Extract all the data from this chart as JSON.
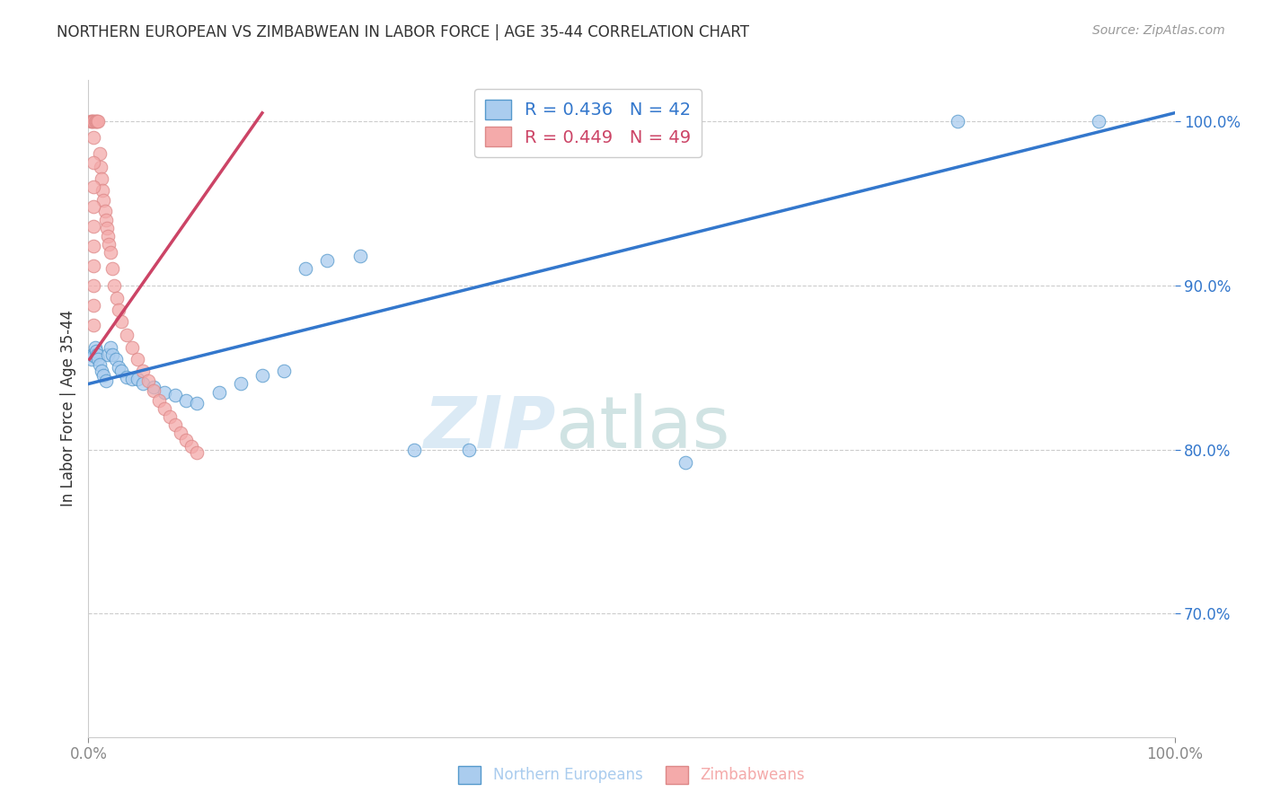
{
  "title": "NORTHERN EUROPEAN VS ZIMBABWEAN IN LABOR FORCE | AGE 35-44 CORRELATION CHART",
  "source": "Source: ZipAtlas.com",
  "ylabel": "In Labor Force | Age 35-44",
  "xlim": [
    0.0,
    1.0
  ],
  "ylim": [
    0.625,
    1.025
  ],
  "yticks": [
    0.7,
    0.8,
    0.9,
    1.0
  ],
  "ytick_labels": [
    "70.0%",
    "80.0%",
    "90.0%",
    "100.0%"
  ],
  "xtick_labels": [
    "0.0%",
    "100.0%"
  ],
  "xtick_positions": [
    0.0,
    1.0
  ],
  "blue_R": 0.436,
  "blue_N": 42,
  "pink_R": 0.449,
  "pink_N": 49,
  "blue_fill_color": "#aaccee",
  "pink_fill_color": "#f4aaaa",
  "blue_edge_color": "#5599cc",
  "pink_edge_color": "#dd8888",
  "blue_line_color": "#3377cc",
  "pink_line_color": "#cc4466",
  "watermark1": "ZIP",
  "watermark2": "atlas",
  "blue_scatter_x": [
    0.003,
    0.004,
    0.005,
    0.006,
    0.007,
    0.008,
    0.009,
    0.01,
    0.012,
    0.014,
    0.016,
    0.018,
    0.02,
    0.022,
    0.025,
    0.028,
    0.03,
    0.035,
    0.04,
    0.045,
    0.05,
    0.06,
    0.07,
    0.08,
    0.09,
    0.1,
    0.12,
    0.14,
    0.16,
    0.18,
    0.2,
    0.22,
    0.25,
    0.3,
    0.35,
    0.55,
    0.8,
    0.93
  ],
  "blue_scatter_y": [
    0.855,
    0.858,
    0.857,
    0.862,
    0.86,
    0.858,
    0.855,
    0.852,
    0.848,
    0.845,
    0.842,
    0.858,
    0.862,
    0.858,
    0.855,
    0.85,
    0.848,
    0.844,
    0.843,
    0.843,
    0.84,
    0.838,
    0.835,
    0.833,
    0.83,
    0.828,
    0.835,
    0.84,
    0.845,
    0.848,
    0.91,
    0.915,
    0.918,
    0.8,
    0.8,
    0.792,
    1.0,
    1.0
  ],
  "pink_scatter_x": [
    0.002,
    0.003,
    0.004,
    0.005,
    0.006,
    0.007,
    0.008,
    0.009,
    0.01,
    0.011,
    0.012,
    0.013,
    0.014,
    0.015,
    0.016,
    0.017,
    0.018,
    0.019,
    0.02,
    0.022,
    0.024,
    0.026,
    0.028,
    0.03,
    0.035,
    0.04,
    0.045,
    0.05,
    0.055,
    0.06,
    0.065,
    0.07,
    0.075,
    0.08,
    0.085,
    0.09,
    0.095,
    0.1,
    0.005,
    0.005,
    0.005,
    0.005,
    0.005,
    0.005,
    0.005,
    0.005,
    0.005,
    0.005
  ],
  "pink_scatter_y": [
    1.0,
    1.0,
    1.0,
    1.0,
    1.0,
    1.0,
    1.0,
    1.0,
    0.98,
    0.972,
    0.965,
    0.958,
    0.952,
    0.945,
    0.94,
    0.935,
    0.93,
    0.925,
    0.92,
    0.91,
    0.9,
    0.892,
    0.885,
    0.878,
    0.87,
    0.862,
    0.855,
    0.848,
    0.842,
    0.836,
    0.83,
    0.825,
    0.82,
    0.815,
    0.81,
    0.806,
    0.802,
    0.798,
    0.99,
    0.975,
    0.96,
    0.948,
    0.936,
    0.924,
    0.912,
    0.9,
    0.888,
    0.876
  ],
  "blue_line_x": [
    0.0,
    1.0
  ],
  "blue_line_y": [
    0.84,
    1.005
  ],
  "pink_line_x": [
    0.001,
    0.16
  ],
  "pink_line_y": [
    0.855,
    1.005
  ],
  "legend_blue_label": "R = 0.436   N = 42",
  "legend_pink_label": "R = 0.449   N = 49",
  "legend_northern": "Northern Europeans",
  "legend_zimbabweans": "Zimbabweans",
  "background_color": "#ffffff",
  "grid_color": "#cccccc",
  "title_color": "#333333",
  "source_color": "#999999",
  "axis_label_color": "#333333",
  "tick_color_y": "#3377cc",
  "tick_color_x": "#888888"
}
